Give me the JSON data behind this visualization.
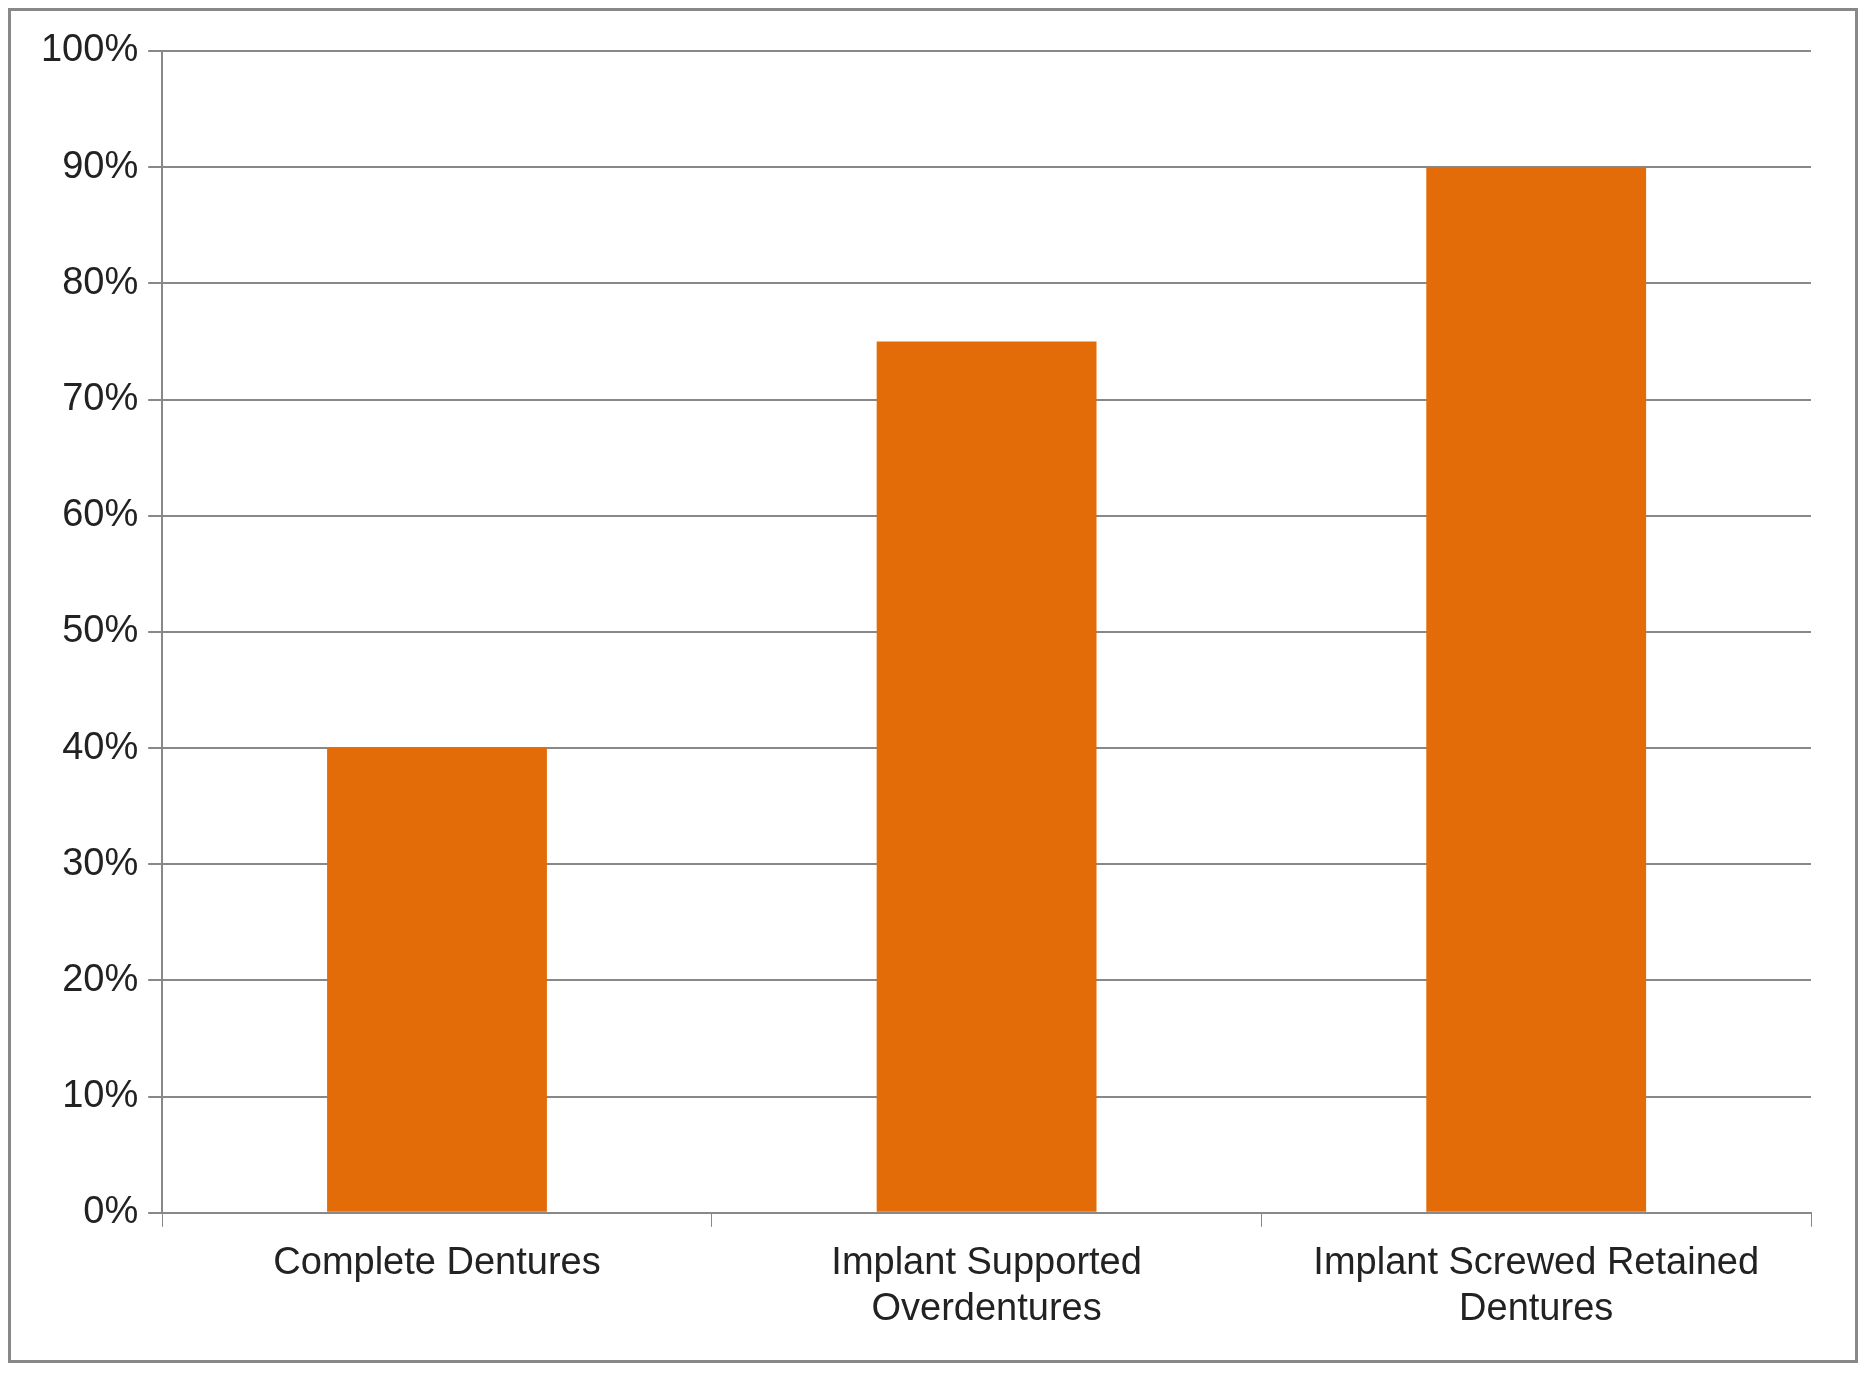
{
  "chart_data": {
    "type": "bar",
    "categories": [
      "Complete Dentures",
      "Implant Supported Overdentures",
      "Implant Screwed Retained Dentures"
    ],
    "values": [
      40,
      75,
      90
    ],
    "color": "#e36c09",
    "ylim": [
      0,
      100
    ],
    "yticks": [
      {
        "value": 0,
        "label": "0%"
      },
      {
        "value": 10,
        "label": "10%"
      },
      {
        "value": 20,
        "label": "20%"
      },
      {
        "value": 30,
        "label": "30%"
      },
      {
        "value": 40,
        "label": "40%"
      },
      {
        "value": 50,
        "label": "50%"
      },
      {
        "value": 60,
        "label": "60%"
      },
      {
        "value": 70,
        "label": "70%"
      },
      {
        "value": 80,
        "label": "80%"
      },
      {
        "value": 90,
        "label": "90%"
      },
      {
        "value": 100,
        "label": "100%"
      }
    ],
    "grid": "y",
    "legend": false
  }
}
